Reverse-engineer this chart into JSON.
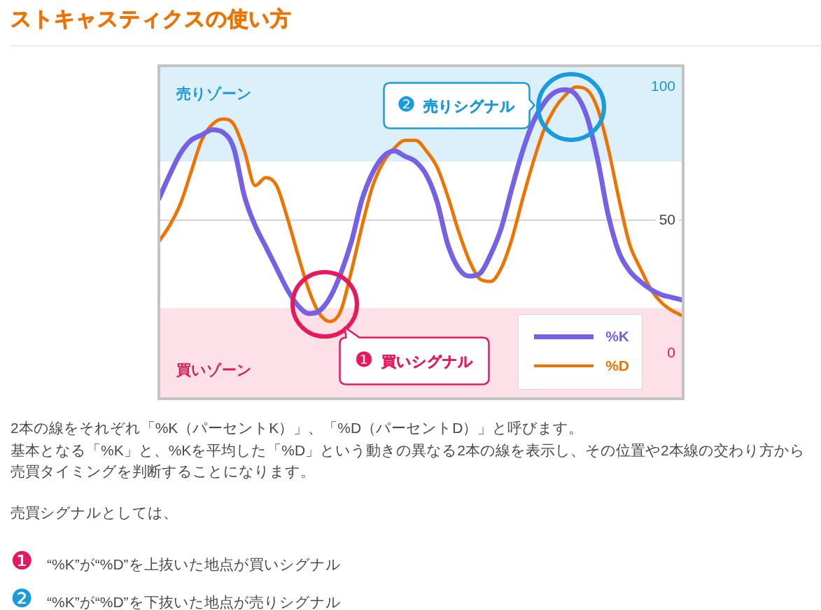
{
  "chart_data": {
    "type": "line",
    "title": "ストキャスティクスの使い方",
    "categories": [
      null,
      null,
      null,
      null,
      null,
      null,
      null,
      null,
      null,
      null,
      null,
      null,
      null,
      null,
      null,
      null,
      null,
      null,
      null,
      null,
      null,
      null,
      null,
      null,
      null,
      null,
      null,
      null,
      null,
      null,
      null,
      null,
      null,
      null,
      null,
      null,
      null,
      null,
      null,
      null,
      null,
      null,
      null,
      null,
      null,
      null,
      null,
      null,
      null,
      null
    ],
    "series": [
      {
        "name": "%K",
        "color": "#7461e6",
        "values": [
          58,
          67,
          75,
          80,
          82,
          84,
          83,
          77,
          59,
          48,
          40,
          32,
          24,
          18,
          15,
          16,
          21,
          30,
          42,
          58,
          68,
          74,
          76,
          74,
          72,
          67,
          57,
          41,
          32,
          29,
          30,
          37,
          47,
          62,
          76,
          87,
          94,
          98,
          99,
          97,
          89,
          73,
          52,
          38,
          31,
          27,
          24,
          22,
          21,
          20
        ]
      },
      {
        "name": "%D",
        "color": "#ef7300",
        "values": [
          42,
          48,
          56,
          68,
          80,
          86,
          88,
          86,
          76,
          63,
          66,
          63,
          51,
          37,
          24,
          15,
          12,
          16,
          31,
          48,
          63,
          72,
          77,
          80,
          80,
          76,
          70,
          59,
          46,
          35,
          28,
          27,
          32,
          43,
          58,
          72,
          84,
          92,
          97,
          100,
          99,
          92,
          77,
          58,
          41,
          32,
          24,
          19,
          16,
          14
        ]
      }
    ],
    "ylim": [
      -17,
      108
    ],
    "yticks": [
      0,
      50,
      100
    ],
    "bands": [
      {
        "axis": "y",
        "from": 72,
        "to": 108,
        "label": "売りゾーン",
        "color": "#dcf0fb"
      },
      {
        "axis": "y",
        "from": -17,
        "to": 17,
        "label": "買いゾーン",
        "color": "#fde0e8"
      }
    ],
    "ref_lines": [
      {
        "axis": "y",
        "value": 50,
        "color": "#d2d2d2"
      }
    ],
    "legend": "bottom right",
    "tick_labels": "y",
    "marker": "none",
    "line_style": "solid",
    "annotations": [
      "❶ 買いシグナル",
      "❷ 売りシグナル",
      "2本の線をそれぞれ「%K（パーセントK）」、「%D（パーセントD）」と呼びます。",
      "基本となる「%K」と、%Kを平均した「%D」という動きの異なる2本の線を表示し、その位置や2本線の交わり方から売買タイミングを判断することになります。",
      "売買シグナルとしては、",
      "❶ “%K”が“%D”を上抜いた地点が買いシグナル",
      "❷ “%K”が“%D”を下抜いた地点が売りシグナル"
    ]
  }
}
